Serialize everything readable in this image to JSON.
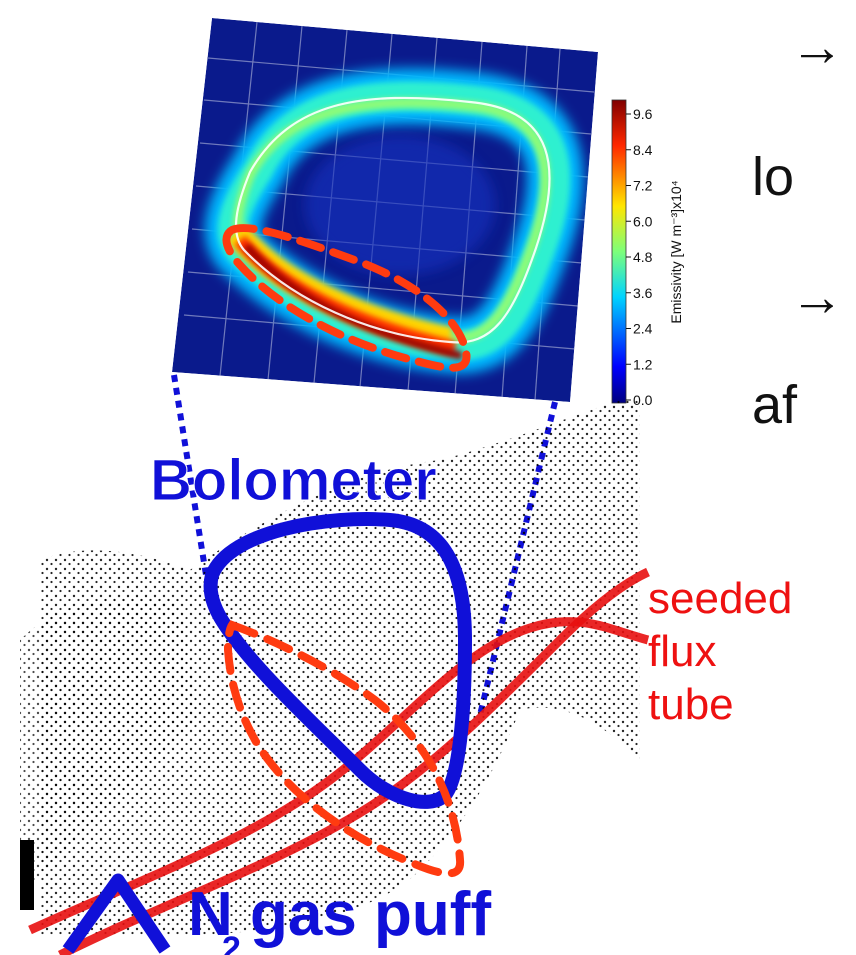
{
  "right_text": {
    "line1": "→",
    "line2": "lo",
    "line3": "→",
    "line4": "af"
  },
  "colorbar": {
    "title": "Emissivity [W m⁻³]x10⁴",
    "ticks": [
      "9.6",
      "8.4",
      "7.2",
      "6.0",
      "4.8",
      "3.6",
      "2.4",
      "1.2",
      "0.0"
    ]
  },
  "labels": {
    "bolometer": "Bolometer",
    "seeded": "seeded",
    "flux": "flux",
    "tube": "tube",
    "gas_puff_N": "N",
    "gas_puff_sub": "2",
    "gas_puff_rest": "gas puff"
  },
  "colors": {
    "bolometer_blue": "#1010d8",
    "seeded_red": "#ee1111",
    "dash_orange": "#ff3b10",
    "map_background": "#0a1a8c"
  }
}
